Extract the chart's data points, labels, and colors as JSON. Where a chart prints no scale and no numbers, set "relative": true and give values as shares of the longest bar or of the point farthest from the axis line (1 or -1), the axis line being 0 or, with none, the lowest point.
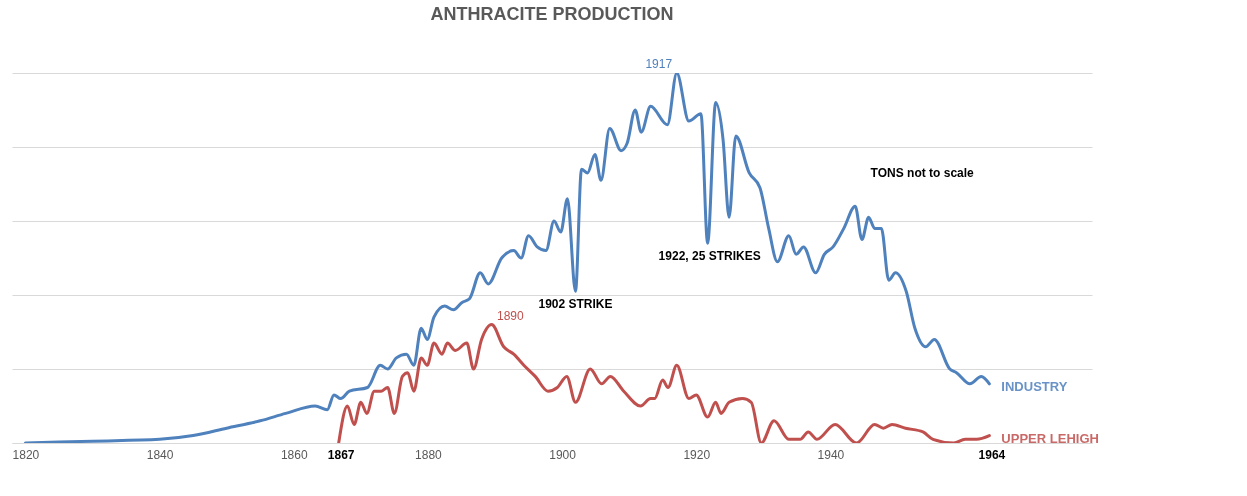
{
  "chart_data": {
    "type": "line",
    "title": "ANTHRACITE PRODUCTION",
    "relative": true,
    "grid": "y",
    "line_style": "solid",
    "marker": "none",
    "xlim": [
      1818,
      1979
    ],
    "xticks": [
      1820,
      1840,
      1860,
      1867,
      1880,
      1900,
      1920,
      1940,
      1964
    ],
    "series": [
      {
        "name": "INDUSTRY",
        "color": "#4f81bd",
        "x": [
          1820,
          1830,
          1840,
          1845,
          1850,
          1855,
          1858.8,
          1863.2,
          1865,
          1866,
          1867,
          1868.3,
          1871,
          1872.9,
          1874,
          1875.3,
          1876.8,
          1877.9,
          1879,
          1879.9,
          1880.9,
          1882.5,
          1883.8,
          1885.1,
          1886.2,
          1887.8,
          1889,
          1891,
          1892.8,
          1893.9,
          1895,
          1896.3,
          1897.6,
          1898.8,
          1899.8,
          1900.8,
          1902,
          1902.9,
          1903.8,
          1904.9,
          1905.8,
          1907.1,
          1908.8,
          1909.7,
          1910.9,
          1911.8,
          1913.2,
          1915.7,
          1917.1,
          1918.9,
          1920.7,
          1921.7,
          1922.9,
          1924,
          1924.9,
          1925.9,
          1927.9,
          1929.5,
          1930.8,
          1932.1,
          1933.8,
          1934.9,
          1936,
          1937.8,
          1939.1,
          1940.4,
          1942,
          1943.7,
          1944.7,
          1945.7,
          1946.6,
          1947.6,
          1948.7,
          1949.7,
          1951.3,
          1952.6,
          1954.2,
          1955.5,
          1957.8,
          1958.8,
          1960.8,
          1962.5,
          1963.7
        ],
        "values": [
          0,
          0.005,
          0.01,
          0.02,
          0.04,
          0.06,
          0.08,
          0.1,
          0.09,
          0.13,
          0.12,
          0.14,
          0.15,
          0.21,
          0.2,
          0.23,
          0.24,
          0.21,
          0.31,
          0.28,
          0.34,
          0.37,
          0.36,
          0.38,
          0.39,
          0.46,
          0.43,
          0.5,
          0.52,
          0.5,
          0.56,
          0.53,
          0.52,
          0.6,
          0.57,
          0.66,
          0.41,
          0.74,
          0.73,
          0.78,
          0.71,
          0.85,
          0.79,
          0.81,
          0.9,
          0.84,
          0.91,
          0.86,
          1,
          0.87,
          0.89,
          0.54,
          0.92,
          0.82,
          0.61,
          0.83,
          0.73,
          0.69,
          0.58,
          0.49,
          0.56,
          0.51,
          0.53,
          0.46,
          0.51,
          0.53,
          0.58,
          0.64,
          0.55,
          0.61,
          0.58,
          0.58,
          0.44,
          0.46,
          0.41,
          0.31,
          0.26,
          0.28,
          0.2,
          0.19,
          0.16,
          0.18,
          0.16
        ]
      },
      {
        "name": "UPPER LEHIGH",
        "color": "#c0504d",
        "x": [
          1866.7,
          1868,
          1869,
          1870,
          1870.9,
          1872,
          1873,
          1874,
          1875,
          1876.2,
          1877,
          1877.9,
          1879,
          1879.9,
          1880.9,
          1882.1,
          1882.9,
          1884.1,
          1885.8,
          1886.8,
          1888,
          1889.5,
          1891.3,
          1892.8,
          1894.3,
          1896,
          1897.9,
          1899.3,
          1900.7,
          1902,
          1904.2,
          1905.9,
          1907.2,
          1909.2,
          1911.7,
          1913.2,
          1913.8,
          1915,
          1915.8,
          1917.1,
          1918.9,
          1920,
          1921.7,
          1922.9,
          1923.7,
          1924.9,
          1926.9,
          1928.2,
          1929.7,
          1931.6,
          1933.8,
          1935.5,
          1936.7,
          1938,
          1940.7,
          1943.9,
          1946.6,
          1947.9,
          1949.2,
          1951.2,
          1953.8,
          1955.3,
          1958.4,
          1960.1,
          1961.8,
          1963.7
        ],
        "values": [
          0,
          0.1,
          0.05,
          0.11,
          0.08,
          0.14,
          0.14,
          0.15,
          0.08,
          0.18,
          0.19,
          0.14,
          0.23,
          0.21,
          0.27,
          0.24,
          0.27,
          0.25,
          0.27,
          0.2,
          0.28,
          0.32,
          0.26,
          0.24,
          0.21,
          0.18,
          0.14,
          0.15,
          0.18,
          0.11,
          0.2,
          0.16,
          0.18,
          0.14,
          0.1,
          0.12,
          0.12,
          0.17,
          0.15,
          0.21,
          0.12,
          0.13,
          0.07,
          0.11,
          0.08,
          0.11,
          0.12,
          0.11,
          0,
          0.06,
          0.01,
          0.01,
          0.03,
          0.01,
          0.05,
          0,
          0.05,
          0.04,
          0.05,
          0.04,
          0.03,
          0.01,
          0,
          0.01,
          0.01,
          0.02
        ]
      }
    ],
    "annotations": [
      {
        "text": "1917",
        "x": 1917,
        "y": 1
      },
      {
        "text": "1890",
        "x": 1890,
        "y": 0.32
      },
      {
        "text": "1902 STRIKE",
        "x": 1902,
        "y": 0.41
      },
      {
        "text": "1922, 25 STRIKES",
        "x": 1922,
        "y": 0.54
      },
      "TONS not to scale"
    ]
  }
}
